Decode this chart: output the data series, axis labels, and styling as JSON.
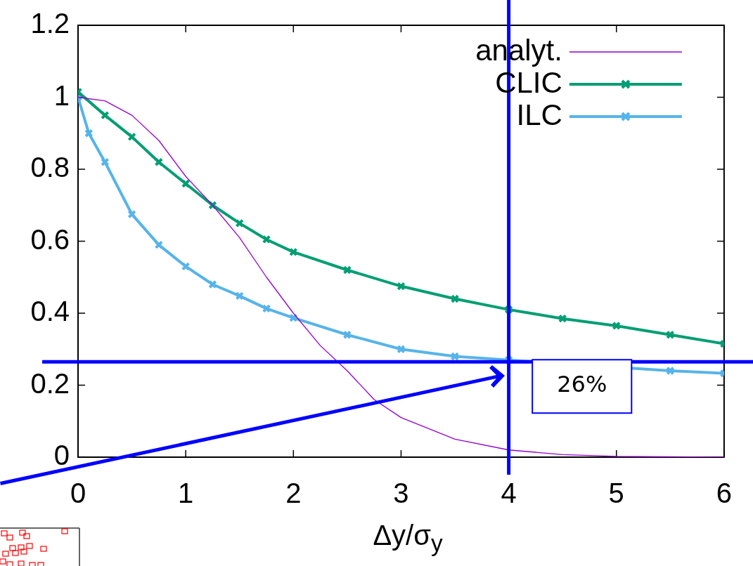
{
  "chart_data": {
    "type": "line",
    "xlabel": "Δy/σ$_{y}$",
    "xlim": [
      0,
      6
    ],
    "xticks": [
      0,
      1,
      2,
      3,
      4,
      5,
      6
    ],
    "ylim": [
      0,
      1.2
    ],
    "yticks": [
      0,
      0.2,
      0.4,
      0.6,
      0.8,
      1,
      1.2
    ],
    "grid": false,
    "legend": "top right",
    "line_style": "solid",
    "series": [
      {
        "name": "analyt.",
        "color": "#9400d3",
        "marker": "none",
        "x": [
          0,
          0.25,
          0.5,
          0.75,
          1,
          1.25,
          1.5,
          1.75,
          2,
          2.25,
          2.5,
          2.75,
          3,
          3.5,
          4,
          4.5,
          5,
          6
        ],
        "values": [
          1,
          0.99,
          0.95,
          0.88,
          0.78,
          0.7,
          0.61,
          0.5,
          0.4,
          0.31,
          0.24,
          0.16,
          0.11,
          0.05,
          0.02,
          0.007,
          0.002,
          0
        ]
      },
      {
        "name": "CLIC",
        "color": "#009e73",
        "marker": "cross",
        "x": [
          0,
          0.25,
          0.5,
          0.75,
          1,
          1.25,
          1.5,
          1.75,
          2,
          2.5,
          3,
          3.5,
          4,
          4.5,
          5,
          5.5,
          6
        ],
        "values": [
          1.015,
          0.95,
          0.89,
          0.82,
          0.76,
          0.7,
          0.65,
          0.605,
          0.57,
          0.52,
          0.475,
          0.44,
          0.41,
          0.385,
          0.365,
          0.34,
          0.315
        ]
      },
      {
        "name": "ILC",
        "color": "#56b4e9",
        "marker": "cross",
        "x": [
          0,
          0.1,
          0.25,
          0.5,
          0.75,
          1,
          1.25,
          1.5,
          1.75,
          2,
          2.5,
          3,
          3.5,
          4,
          4.5,
          5,
          5.5,
          6
        ],
        "values": [
          1,
          0.9,
          0.82,
          0.675,
          0.59,
          0.53,
          0.48,
          0.448,
          0.413,
          0.387,
          0.34,
          0.3,
          0.28,
          0.27,
          null,
          null,
          0.24,
          0.233
        ]
      }
    ],
    "ref_lines": [
      {
        "axis": "x",
        "value": 4,
        "color": "#0000ff"
      },
      {
        "axis": "y",
        "value": 0.265,
        "color": "#0000ff"
      }
    ],
    "annotations": [
      "26%"
    ]
  }
}
